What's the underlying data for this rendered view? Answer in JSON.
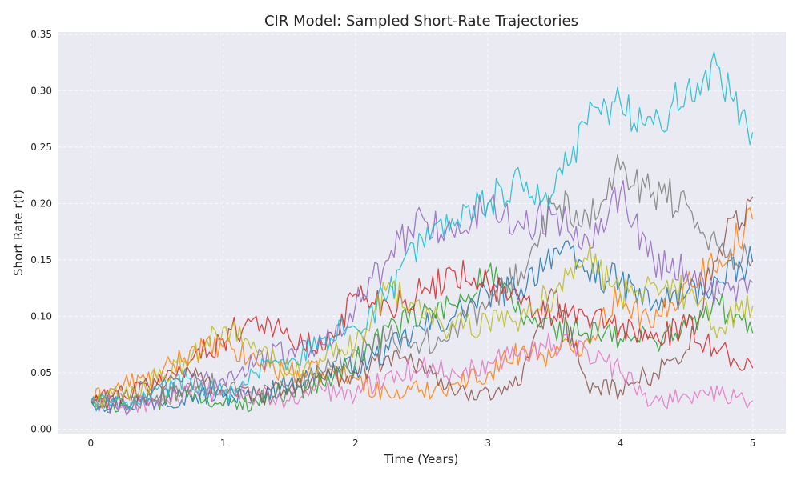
{
  "chart_data": {
    "type": "line",
    "title": "CIR Model: Sampled Short-Rate Trajectories",
    "xlabel": "Time (Years)",
    "ylabel": "Short Rate r(t)",
    "xlim": [
      -0.25,
      5.25
    ],
    "ylim": [
      -0.004,
      0.352
    ],
    "xticks": [
      0,
      1,
      2,
      3,
      4,
      5
    ],
    "xtick_labels": [
      "0",
      "1",
      "2",
      "3",
      "4",
      "5"
    ],
    "yticks": [
      0.0,
      0.05,
      0.1,
      0.15,
      0.2,
      0.25,
      0.3,
      0.35
    ],
    "ytick_labels": [
      "0.00",
      "0.05",
      "0.10",
      "0.15",
      "0.20",
      "0.25",
      "0.30",
      "0.35"
    ],
    "grid": true,
    "legend": "none",
    "background": "#eaeaf2",
    "series": [
      {
        "color": "#1f77b4",
        "x": [
          0,
          0.25,
          0.5,
          0.75,
          1,
          1.25,
          1.5,
          1.75,
          2,
          2.25,
          2.5,
          2.75,
          3,
          3.25,
          3.5,
          3.75,
          4,
          4.25,
          4.5,
          4.75,
          5
        ],
        "y": [
          0.025,
          0.022,
          0.025,
          0.03,
          0.028,
          0.03,
          0.04,
          0.05,
          0.055,
          0.07,
          0.09,
          0.1,
          0.12,
          0.125,
          0.16,
          0.14,
          0.13,
          0.11,
          0.12,
          0.13,
          0.148
        ]
      },
      {
        "color": "#ff7f0e",
        "x": [
          0,
          0.25,
          0.5,
          0.75,
          1,
          1.25,
          1.5,
          1.75,
          2,
          2.25,
          2.5,
          2.75,
          3,
          3.25,
          3.5,
          3.75,
          4,
          4.25,
          4.5,
          4.75,
          5
        ],
        "y": [
          0.025,
          0.04,
          0.045,
          0.07,
          0.072,
          0.06,
          0.05,
          0.05,
          0.045,
          0.03,
          0.035,
          0.04,
          0.05,
          0.07,
          0.065,
          0.08,
          0.12,
          0.09,
          0.13,
          0.15,
          0.186
        ]
      },
      {
        "color": "#2ca02c",
        "x": [
          0,
          0.25,
          0.5,
          0.75,
          1,
          1.25,
          1.5,
          1.75,
          2,
          2.25,
          2.5,
          2.75,
          3,
          3.25,
          3.5,
          3.75,
          4,
          4.25,
          4.5,
          4.75,
          5
        ],
        "y": [
          0.025,
          0.02,
          0.025,
          0.035,
          0.02,
          0.025,
          0.035,
          0.04,
          0.06,
          0.09,
          0.1,
          0.11,
          0.14,
          0.1,
          0.09,
          0.085,
          0.08,
          0.08,
          0.09,
          0.11,
          0.085
        ]
      },
      {
        "color": "#d62728",
        "x": [
          0,
          0.25,
          0.5,
          0.75,
          1,
          1.25,
          1.5,
          1.75,
          2,
          2.25,
          2.5,
          2.75,
          3,
          3.25,
          3.5,
          3.75,
          4,
          4.25,
          4.5,
          4.75,
          5
        ],
        "y": [
          0.025,
          0.03,
          0.04,
          0.06,
          0.08,
          0.1,
          0.08,
          0.07,
          0.12,
          0.11,
          0.12,
          0.14,
          0.13,
          0.11,
          0.1,
          0.1,
          0.09,
          0.08,
          0.09,
          0.07,
          0.054
        ]
      },
      {
        "color": "#9467bd",
        "x": [
          0,
          0.25,
          0.5,
          0.75,
          1,
          1.25,
          1.5,
          1.75,
          2,
          2.25,
          2.5,
          2.75,
          3,
          3.25,
          3.5,
          3.75,
          4,
          4.25,
          4.5,
          4.75,
          5
        ],
        "y": [
          0.025,
          0.02,
          0.025,
          0.04,
          0.045,
          0.06,
          0.07,
          0.075,
          0.11,
          0.15,
          0.19,
          0.17,
          0.2,
          0.18,
          0.19,
          0.17,
          0.21,
          0.15,
          0.14,
          0.12,
          0.13
        ]
      },
      {
        "color": "#8c564b",
        "x": [
          0,
          0.25,
          0.5,
          0.75,
          1,
          1.25,
          1.5,
          1.75,
          2,
          2.25,
          2.5,
          2.75,
          3,
          3.25,
          3.5,
          3.75,
          4,
          4.25,
          4.5,
          4.75,
          5
        ],
        "y": [
          0.025,
          0.03,
          0.04,
          0.05,
          0.035,
          0.03,
          0.035,
          0.045,
          0.05,
          0.065,
          0.06,
          0.03,
          0.035,
          0.04,
          0.12,
          0.04,
          0.035,
          0.05,
          0.07,
          0.16,
          0.206
        ]
      },
      {
        "color": "#e377c2",
        "x": [
          0,
          0.25,
          0.5,
          0.75,
          1,
          1.25,
          1.5,
          1.75,
          2,
          2.25,
          2.5,
          2.75,
          3,
          3.25,
          3.5,
          3.75,
          4,
          4.25,
          4.5,
          4.75,
          5
        ],
        "y": [
          0.025,
          0.02,
          0.025,
          0.03,
          0.035,
          0.03,
          0.025,
          0.035,
          0.03,
          0.05,
          0.055,
          0.05,
          0.06,
          0.07,
          0.075,
          0.07,
          0.05,
          0.025,
          0.03,
          0.03,
          0.025
        ]
      },
      {
        "color": "#7f7f7f",
        "x": [
          0,
          0.25,
          0.5,
          0.75,
          1,
          1.25,
          1.5,
          1.75,
          2,
          2.25,
          2.5,
          2.75,
          3,
          3.25,
          3.5,
          3.75,
          4,
          4.25,
          4.5,
          4.75,
          5
        ],
        "y": [
          0.025,
          0.025,
          0.03,
          0.04,
          0.04,
          0.03,
          0.035,
          0.05,
          0.07,
          0.08,
          0.075,
          0.09,
          0.11,
          0.14,
          0.2,
          0.19,
          0.23,
          0.21,
          0.2,
          0.16,
          0.15
        ]
      },
      {
        "color": "#bcbd22",
        "x": [
          0,
          0.25,
          0.5,
          0.75,
          1,
          1.25,
          1.5,
          1.75,
          2,
          2.25,
          2.5,
          2.75,
          3,
          3.25,
          3.5,
          3.75,
          4,
          4.25,
          4.5,
          4.75,
          5
        ],
        "y": [
          0.025,
          0.03,
          0.045,
          0.06,
          0.09,
          0.07,
          0.05,
          0.06,
          0.075,
          0.13,
          0.1,
          0.09,
          0.095,
          0.1,
          0.12,
          0.15,
          0.12,
          0.13,
          0.12,
          0.09,
          0.109
        ]
      },
      {
        "color": "#17becf",
        "x": [
          0,
          0.25,
          0.5,
          0.75,
          1,
          1.25,
          1.5,
          1.75,
          2,
          2.25,
          2.5,
          2.75,
          3,
          3.25,
          3.5,
          3.75,
          4,
          4.25,
          4.5,
          4.75,
          5
        ],
        "y": [
          0.025,
          0.022,
          0.035,
          0.045,
          0.03,
          0.05,
          0.06,
          0.08,
          0.09,
          0.12,
          0.17,
          0.18,
          0.2,
          0.22,
          0.21,
          0.27,
          0.29,
          0.27,
          0.3,
          0.32,
          0.263
        ]
      }
    ]
  }
}
